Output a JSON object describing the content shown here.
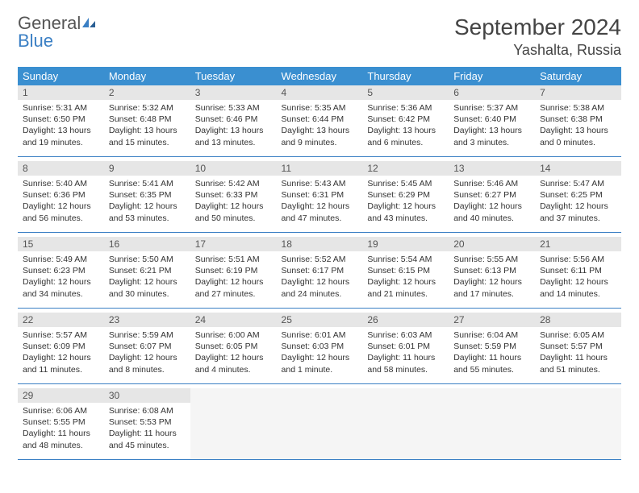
{
  "brand": {
    "name_a": "General",
    "name_b": "Blue"
  },
  "title": "September 2024",
  "location": "Yashalta, Russia",
  "colors": {
    "header_bg": "#3a8fd0",
    "header_text": "#ffffff",
    "daynum_bg": "#e6e6e6",
    "border": "#3a7fc4",
    "brand_blue": "#3a7fc4",
    "text": "#333333",
    "background": "#ffffff"
  },
  "typography": {
    "title_fontsize": 28,
    "location_fontsize": 18,
    "dayheader_fontsize": 13,
    "cell_fontsize": 10.5
  },
  "day_headers": [
    "Sunday",
    "Monday",
    "Tuesday",
    "Wednesday",
    "Thursday",
    "Friday",
    "Saturday"
  ],
  "weeks": [
    [
      {
        "n": "1",
        "sunrise": "Sunrise: 5:31 AM",
        "sunset": "Sunset: 6:50 PM",
        "daylight": "Daylight: 13 hours and 19 minutes."
      },
      {
        "n": "2",
        "sunrise": "Sunrise: 5:32 AM",
        "sunset": "Sunset: 6:48 PM",
        "daylight": "Daylight: 13 hours and 15 minutes."
      },
      {
        "n": "3",
        "sunrise": "Sunrise: 5:33 AM",
        "sunset": "Sunset: 6:46 PM",
        "daylight": "Daylight: 13 hours and 13 minutes."
      },
      {
        "n": "4",
        "sunrise": "Sunrise: 5:35 AM",
        "sunset": "Sunset: 6:44 PM",
        "daylight": "Daylight: 13 hours and 9 minutes."
      },
      {
        "n": "5",
        "sunrise": "Sunrise: 5:36 AM",
        "sunset": "Sunset: 6:42 PM",
        "daylight": "Daylight: 13 hours and 6 minutes."
      },
      {
        "n": "6",
        "sunrise": "Sunrise: 5:37 AM",
        "sunset": "Sunset: 6:40 PM",
        "daylight": "Daylight: 13 hours and 3 minutes."
      },
      {
        "n": "7",
        "sunrise": "Sunrise: 5:38 AM",
        "sunset": "Sunset: 6:38 PM",
        "daylight": "Daylight: 13 hours and 0 minutes."
      }
    ],
    [
      {
        "n": "8",
        "sunrise": "Sunrise: 5:40 AM",
        "sunset": "Sunset: 6:36 PM",
        "daylight": "Daylight: 12 hours and 56 minutes."
      },
      {
        "n": "9",
        "sunrise": "Sunrise: 5:41 AM",
        "sunset": "Sunset: 6:35 PM",
        "daylight": "Daylight: 12 hours and 53 minutes."
      },
      {
        "n": "10",
        "sunrise": "Sunrise: 5:42 AM",
        "sunset": "Sunset: 6:33 PM",
        "daylight": "Daylight: 12 hours and 50 minutes."
      },
      {
        "n": "11",
        "sunrise": "Sunrise: 5:43 AM",
        "sunset": "Sunset: 6:31 PM",
        "daylight": "Daylight: 12 hours and 47 minutes."
      },
      {
        "n": "12",
        "sunrise": "Sunrise: 5:45 AM",
        "sunset": "Sunset: 6:29 PM",
        "daylight": "Daylight: 12 hours and 43 minutes."
      },
      {
        "n": "13",
        "sunrise": "Sunrise: 5:46 AM",
        "sunset": "Sunset: 6:27 PM",
        "daylight": "Daylight: 12 hours and 40 minutes."
      },
      {
        "n": "14",
        "sunrise": "Sunrise: 5:47 AM",
        "sunset": "Sunset: 6:25 PM",
        "daylight": "Daylight: 12 hours and 37 minutes."
      }
    ],
    [
      {
        "n": "15",
        "sunrise": "Sunrise: 5:49 AM",
        "sunset": "Sunset: 6:23 PM",
        "daylight": "Daylight: 12 hours and 34 minutes."
      },
      {
        "n": "16",
        "sunrise": "Sunrise: 5:50 AM",
        "sunset": "Sunset: 6:21 PM",
        "daylight": "Daylight: 12 hours and 30 minutes."
      },
      {
        "n": "17",
        "sunrise": "Sunrise: 5:51 AM",
        "sunset": "Sunset: 6:19 PM",
        "daylight": "Daylight: 12 hours and 27 minutes."
      },
      {
        "n": "18",
        "sunrise": "Sunrise: 5:52 AM",
        "sunset": "Sunset: 6:17 PM",
        "daylight": "Daylight: 12 hours and 24 minutes."
      },
      {
        "n": "19",
        "sunrise": "Sunrise: 5:54 AM",
        "sunset": "Sunset: 6:15 PM",
        "daylight": "Daylight: 12 hours and 21 minutes."
      },
      {
        "n": "20",
        "sunrise": "Sunrise: 5:55 AM",
        "sunset": "Sunset: 6:13 PM",
        "daylight": "Daylight: 12 hours and 17 minutes."
      },
      {
        "n": "21",
        "sunrise": "Sunrise: 5:56 AM",
        "sunset": "Sunset: 6:11 PM",
        "daylight": "Daylight: 12 hours and 14 minutes."
      }
    ],
    [
      {
        "n": "22",
        "sunrise": "Sunrise: 5:57 AM",
        "sunset": "Sunset: 6:09 PM",
        "daylight": "Daylight: 12 hours and 11 minutes."
      },
      {
        "n": "23",
        "sunrise": "Sunrise: 5:59 AM",
        "sunset": "Sunset: 6:07 PM",
        "daylight": "Daylight: 12 hours and 8 minutes."
      },
      {
        "n": "24",
        "sunrise": "Sunrise: 6:00 AM",
        "sunset": "Sunset: 6:05 PM",
        "daylight": "Daylight: 12 hours and 4 minutes."
      },
      {
        "n": "25",
        "sunrise": "Sunrise: 6:01 AM",
        "sunset": "Sunset: 6:03 PM",
        "daylight": "Daylight: 12 hours and 1 minute."
      },
      {
        "n": "26",
        "sunrise": "Sunrise: 6:03 AM",
        "sunset": "Sunset: 6:01 PM",
        "daylight": "Daylight: 11 hours and 58 minutes."
      },
      {
        "n": "27",
        "sunrise": "Sunrise: 6:04 AM",
        "sunset": "Sunset: 5:59 PM",
        "daylight": "Daylight: 11 hours and 55 minutes."
      },
      {
        "n": "28",
        "sunrise": "Sunrise: 6:05 AM",
        "sunset": "Sunset: 5:57 PM",
        "daylight": "Daylight: 11 hours and 51 minutes."
      }
    ],
    [
      {
        "n": "29",
        "sunrise": "Sunrise: 6:06 AM",
        "sunset": "Sunset: 5:55 PM",
        "daylight": "Daylight: 11 hours and 48 minutes."
      },
      {
        "n": "30",
        "sunrise": "Sunrise: 6:08 AM",
        "sunset": "Sunset: 5:53 PM",
        "daylight": "Daylight: 11 hours and 45 minutes."
      },
      null,
      null,
      null,
      null,
      null
    ]
  ]
}
